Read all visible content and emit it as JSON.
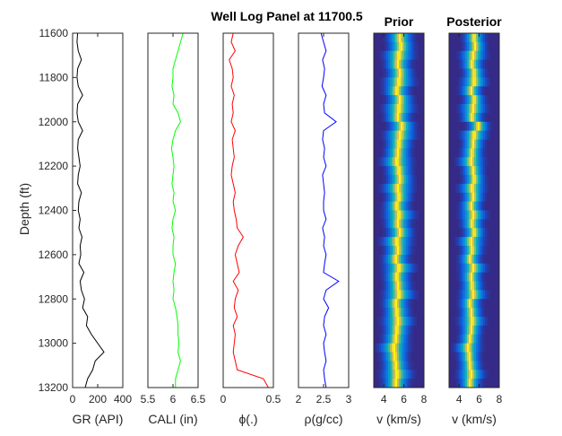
{
  "figure": {
    "title": "Well Log Panel at 11700.5",
    "ylabel": "Depth (ft)"
  },
  "chart_data": [
    {
      "type": "line",
      "track": "gr",
      "xlabel": "GR (API)",
      "xlim": [
        0,
        400
      ],
      "xticks": [
        "0",
        "200",
        "400"
      ],
      "ylim": [
        11600,
        13200
      ],
      "yticks": [
        "11600",
        "11800",
        "12000",
        "12200",
        "12400",
        "12600",
        "12800",
        "13000",
        "13200"
      ],
      "y_reversed": true,
      "color": "#000000",
      "depth": [
        11600,
        11640,
        11680,
        11720,
        11760,
        11800,
        11840,
        11880,
        11920,
        11960,
        12000,
        12040,
        12080,
        12120,
        12160,
        12200,
        12240,
        12280,
        12320,
        12360,
        12400,
        12440,
        12480,
        12520,
        12560,
        12600,
        12640,
        12680,
        12720,
        12760,
        12800,
        12840,
        12880,
        12920,
        12960,
        13000,
        13040,
        13080,
        13120,
        13160,
        13200
      ],
      "values": [
        40,
        35,
        45,
        70,
        40,
        35,
        45,
        80,
        40,
        35,
        45,
        80,
        45,
        40,
        50,
        60,
        45,
        40,
        70,
        50,
        45,
        60,
        50,
        75,
        60,
        65,
        50,
        90,
        60,
        70,
        95,
        80,
        120,
        110,
        150,
        200,
        250,
        180,
        160,
        120,
        100
      ]
    },
    {
      "type": "line",
      "track": "cali",
      "xlabel": "CALI (in)",
      "xlim": [
        5.5,
        6.5
      ],
      "xticks": [
        "5.5",
        "6",
        "6.5"
      ],
      "ylim": [
        11600,
        13200
      ],
      "y_reversed": true,
      "color": "#00ff00",
      "depth": [
        11600,
        11640,
        11680,
        11720,
        11760,
        11800,
        11840,
        11880,
        11920,
        11960,
        12000,
        12040,
        12080,
        12120,
        12160,
        12200,
        12240,
        12280,
        12320,
        12360,
        12400,
        12440,
        12480,
        12520,
        12560,
        12600,
        12640,
        12680,
        12720,
        12760,
        12800,
        12840,
        12880,
        12920,
        12960,
        13000,
        13040,
        13080,
        13120,
        13160,
        13200
      ],
      "values": [
        6.2,
        6.15,
        6.1,
        6.05,
        6.0,
        6.0,
        5.98,
        6.02,
        6.0,
        6.1,
        6.15,
        6.05,
        6.0,
        5.97,
        6.0,
        6.02,
        6.0,
        5.98,
        6.02,
        6.0,
        6.05,
        6.0,
        5.98,
        6.02,
        6.0,
        6.0,
        6.05,
        6.02,
        6.0,
        6.02,
        6.0,
        6.05,
        6.08,
        6.1,
        6.1,
        6.12,
        6.1,
        6.15,
        6.1,
        6.05,
        6.05
      ]
    },
    {
      "type": "line",
      "track": "phi",
      "xlabel": "ϕ(.)",
      "xlim": [
        0,
        0.5
      ],
      "xticks": [
        "0",
        "0.5"
      ],
      "ylim": [
        11600,
        13200
      ],
      "y_reversed": true,
      "color": "#ff0000",
      "depth": [
        11600,
        11640,
        11680,
        11720,
        11760,
        11800,
        11840,
        11880,
        11920,
        11960,
        12000,
        12040,
        12080,
        12120,
        12160,
        12200,
        12240,
        12280,
        12320,
        12360,
        12400,
        12440,
        12480,
        12520,
        12560,
        12600,
        12640,
        12680,
        12720,
        12760,
        12800,
        12840,
        12880,
        12920,
        12960,
        13000,
        13040,
        13080,
        13120,
        13160,
        13200
      ],
      "values": [
        0.1,
        0.08,
        0.12,
        0.06,
        0.09,
        0.1,
        0.08,
        0.11,
        0.09,
        0.1,
        0.08,
        0.12,
        0.09,
        0.1,
        0.11,
        0.09,
        0.08,
        0.1,
        0.12,
        0.1,
        0.11,
        0.13,
        0.14,
        0.2,
        0.15,
        0.12,
        0.14,
        0.16,
        0.1,
        0.15,
        0.12,
        0.11,
        0.14,
        0.1,
        0.12,
        0.11,
        0.1,
        0.12,
        0.14,
        0.4,
        0.45
      ]
    },
    {
      "type": "line",
      "track": "rho",
      "xlabel": "ρ(g/cc)",
      "xlim": [
        2,
        3
      ],
      "xticks": [
        "2",
        "2.5",
        "3"
      ],
      "ylim": [
        11600,
        13200
      ],
      "y_reversed": true,
      "color": "#0000ff",
      "depth": [
        11600,
        11640,
        11680,
        11720,
        11760,
        11800,
        11840,
        11880,
        11920,
        11960,
        12000,
        12040,
        12080,
        12120,
        12160,
        12200,
        12240,
        12280,
        12320,
        12360,
        12400,
        12440,
        12480,
        12520,
        12560,
        12600,
        12640,
        12680,
        12720,
        12760,
        12800,
        12840,
        12880,
        12920,
        12960,
        13000,
        13040,
        13080,
        13120,
        13160,
        13200
      ],
      "values": [
        2.45,
        2.5,
        2.55,
        2.48,
        2.52,
        2.5,
        2.47,
        2.55,
        2.5,
        2.52,
        2.75,
        2.5,
        2.48,
        2.52,
        2.5,
        2.55,
        2.48,
        2.5,
        2.52,
        2.5,
        2.5,
        2.55,
        2.48,
        2.52,
        2.5,
        2.55,
        2.52,
        2.5,
        2.8,
        2.55,
        2.5,
        2.6,
        2.52,
        2.5,
        2.55,
        2.5,
        2.52,
        2.55,
        2.5,
        2.52,
        2.55
      ]
    },
    {
      "type": "heatmap",
      "track": "prior",
      "title": "Prior",
      "xlabel": "v (km/s)",
      "xlim": [
        3,
        8
      ],
      "xticks": [
        "4",
        "6",
        "8"
      ],
      "ylim": [
        11600,
        13200
      ],
      "y_reversed": true,
      "colormap": "parula",
      "depth": [
        11600,
        11640,
        11680,
        11720,
        11760,
        11800,
        11840,
        11880,
        11920,
        11960,
        12000,
        12040,
        12080,
        12120,
        12160,
        12200,
        12240,
        12280,
        12320,
        12360,
        12400,
        12440,
        12480,
        12520,
        12560,
        12600,
        12640,
        12680,
        12720,
        12760,
        12800,
        12840,
        12880,
        12920,
        12960,
        13000,
        13040,
        13080,
        13120,
        13160,
        13200
      ],
      "mean_v": [
        5.6,
        5.7,
        5.5,
        5.4,
        5.6,
        5.5,
        5.3,
        5.6,
        5.5,
        5.4,
        5.8,
        5.6,
        5.5,
        5.4,
        5.3,
        5.5,
        5.6,
        5.4,
        5.5,
        5.3,
        5.5,
        5.4,
        5.6,
        5.3,
        5.4,
        5.2,
        5.5,
        5.3,
        5.4,
        5.5,
        5.2,
        5.3,
        5.4,
        5.3,
        5.2,
        5.0,
        5.1,
        5.2,
        5.3,
        5.2,
        5.1
      ],
      "spread_v": [
        0.6,
        0.6,
        0.7,
        0.6,
        0.6,
        0.7,
        0.6,
        0.6,
        0.7,
        0.6,
        0.6,
        0.7,
        0.6,
        0.6,
        0.7,
        0.6,
        0.6,
        0.7,
        0.6,
        0.6,
        0.7,
        0.6,
        0.6,
        0.7,
        0.6,
        0.6,
        0.7,
        0.6,
        0.6,
        0.7,
        0.6,
        0.6,
        0.7,
        0.6,
        0.6,
        0.7,
        0.6,
        0.6,
        0.7,
        0.6,
        0.6
      ]
    },
    {
      "type": "heatmap",
      "track": "posterior",
      "title": "Posterior",
      "xlabel": "v (km/s)",
      "xlim": [
        3,
        8
      ],
      "xticks": [
        "4",
        "6",
        "8"
      ],
      "ylim": [
        11600,
        13200
      ],
      "y_reversed": true,
      "colormap": "parula",
      "depth": [
        11600,
        11640,
        11680,
        11720,
        11760,
        11800,
        11840,
        11880,
        11920,
        11960,
        12000,
        12040,
        12080,
        12120,
        12160,
        12200,
        12240,
        12280,
        12320,
        12360,
        12400,
        12440,
        12480,
        12520,
        12560,
        12600,
        12640,
        12680,
        12720,
        12760,
        12800,
        12840,
        12880,
        12920,
        12960,
        13000,
        13040,
        13080,
        13120,
        13160,
        13200
      ],
      "mean_v": [
        5.5,
        5.6,
        5.4,
        5.3,
        5.5,
        5.5,
        5.2,
        5.5,
        5.4,
        5.3,
        5.9,
        5.5,
        5.4,
        5.3,
        5.2,
        5.4,
        5.5,
        5.3,
        5.4,
        5.2,
        5.4,
        5.3,
        5.5,
        5.2,
        5.3,
        5.1,
        5.4,
        5.2,
        5.3,
        5.4,
        5.1,
        5.2,
        5.3,
        5.2,
        5.1,
        4.9,
        5.0,
        5.1,
        5.2,
        5.1,
        5.0
      ],
      "spread_v": [
        0.5,
        0.5,
        0.6,
        0.5,
        0.5,
        0.6,
        0.5,
        0.5,
        0.6,
        0.5,
        0.5,
        0.6,
        0.5,
        0.5,
        0.6,
        0.5,
        0.5,
        0.6,
        0.5,
        0.5,
        0.6,
        0.5,
        0.5,
        0.6,
        0.5,
        0.5,
        0.6,
        0.5,
        0.5,
        0.6,
        0.5,
        0.5,
        0.6,
        0.5,
        0.5,
        0.6,
        0.5,
        0.5,
        0.6,
        0.5,
        0.5
      ]
    }
  ]
}
